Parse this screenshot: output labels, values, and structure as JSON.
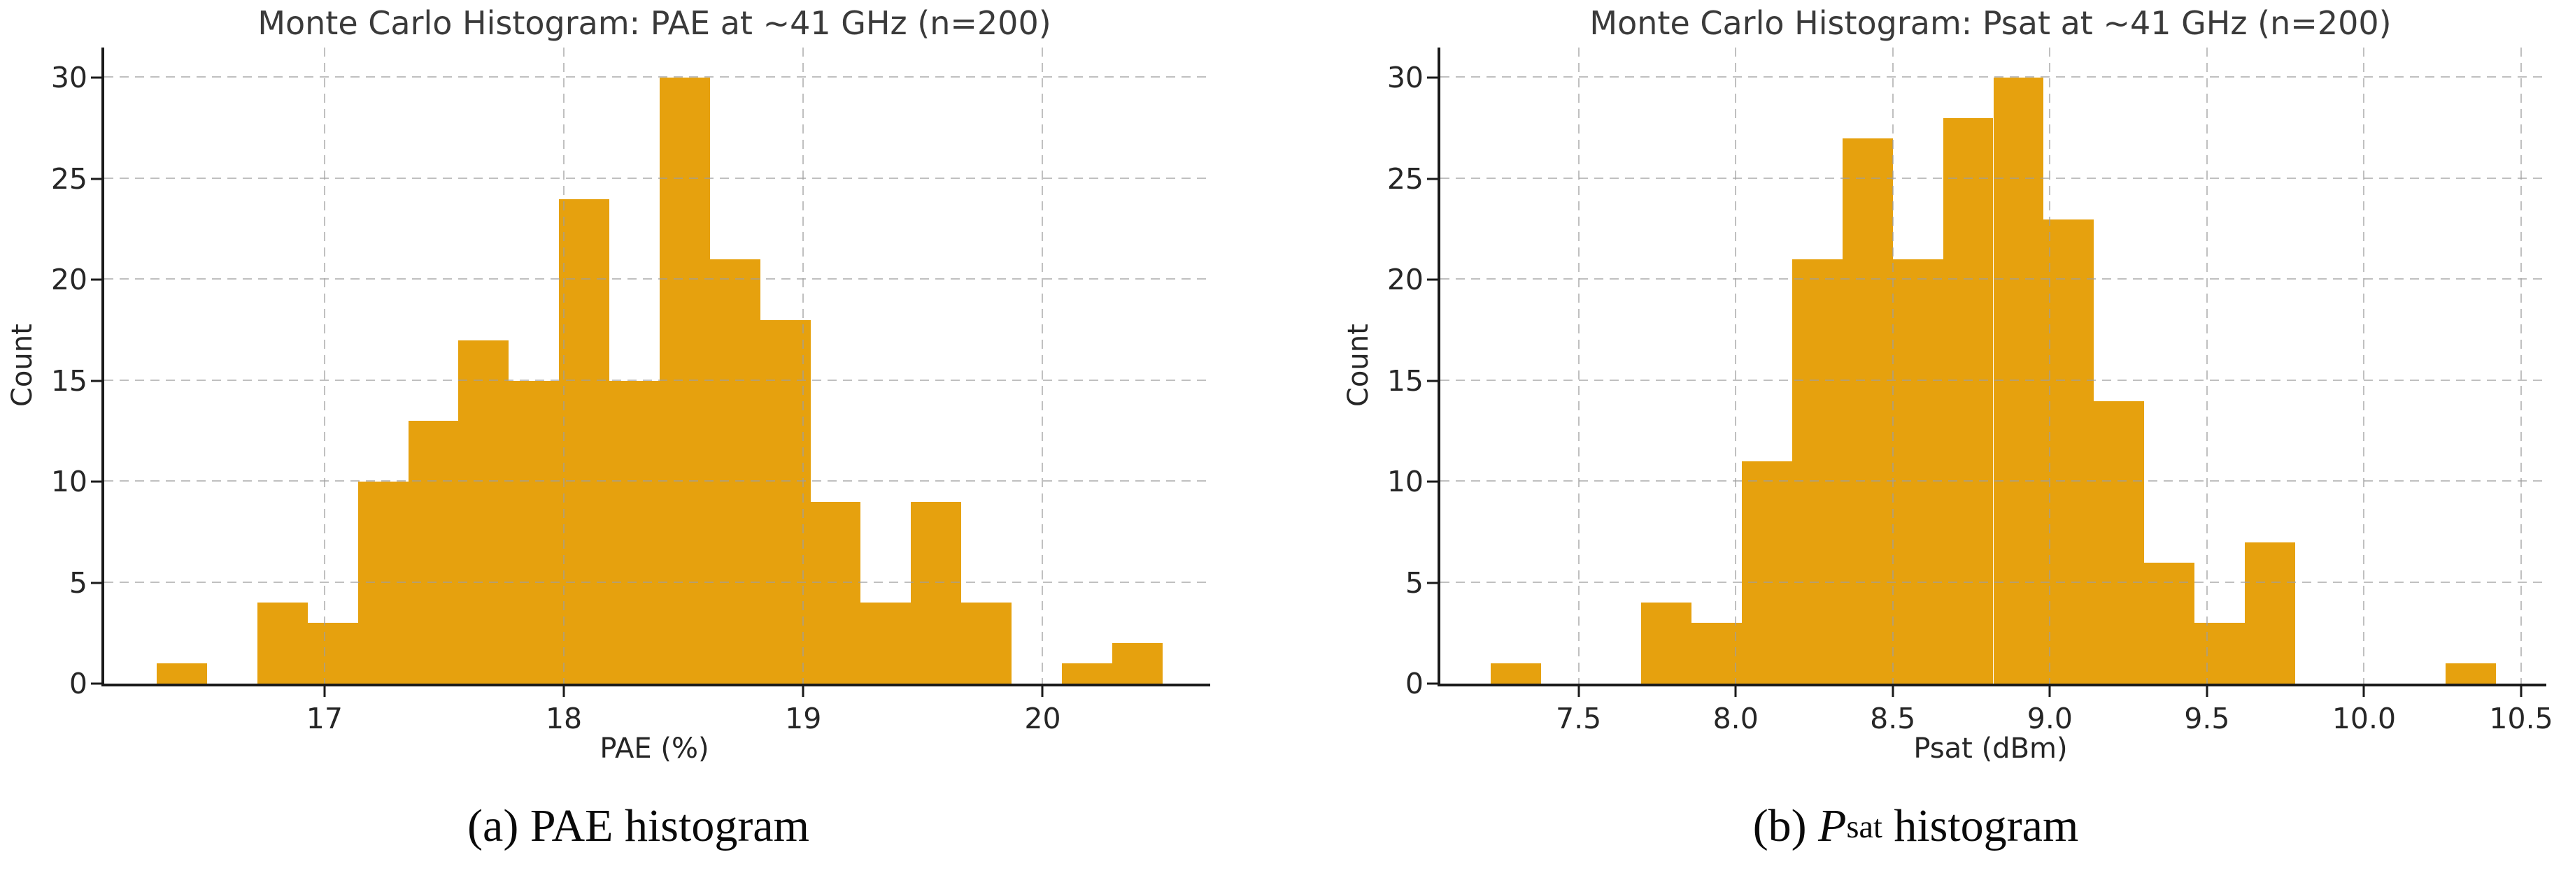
{
  "captions": {
    "a": {
      "prefix": "(a) ",
      "rest": "PAE histogram"
    },
    "b": {
      "prefix": "(b) ",
      "variable": "P",
      "subscript": "sat",
      "rest": " histogram"
    }
  },
  "chart_data": [
    {
      "type": "bar",
      "title": "Monte Carlo Histogram: PAE at ~41 GHz (n=200)",
      "xlabel": "PAE (%)",
      "ylabel": "Count",
      "bar_color": "#E6A10E",
      "grid": true,
      "legend": "none",
      "xlim": [
        16.08,
        20.7
      ],
      "ylim": [
        0,
        31.5
      ],
      "xticks": [
        17,
        18,
        19,
        20
      ],
      "xtick_labels": [
        "17",
        "18",
        "19",
        "20"
      ],
      "yticks": [
        0,
        5,
        10,
        15,
        20,
        25,
        30
      ],
      "ytick_labels": [
        "0",
        "5",
        "10",
        "15",
        "20",
        "25",
        "30"
      ],
      "bin_start": 16.3,
      "bin_width": 0.21,
      "counts": [
        1,
        0,
        4,
        3,
        10,
        13,
        17,
        15,
        24,
        15,
        30,
        21,
        18,
        9,
        4,
        9,
        4,
        0,
        1,
        2
      ],
      "n_total": 200
    },
    {
      "type": "bar",
      "title": "Monte Carlo Histogram: Psat at ~41 GHz (n=200)",
      "xlabel": "Psat (dBm)",
      "ylabel": "Count",
      "bar_color": "#E6A10E",
      "grid": true,
      "legend": "none",
      "xlim": [
        7.06,
        10.58
      ],
      "ylim": [
        0,
        31.5
      ],
      "xticks": [
        7.5,
        8.0,
        8.5,
        9.0,
        9.5,
        10.0,
        10.5
      ],
      "xtick_labels": [
        "7.5",
        "8.0",
        "8.5",
        "9.0",
        "9.5",
        "10.0",
        "10.5"
      ],
      "yticks": [
        0,
        5,
        10,
        15,
        20,
        25,
        30
      ],
      "ytick_labels": [
        "0",
        "5",
        "10",
        "15",
        "20",
        "25",
        "30"
      ],
      "bin_start": 7.22,
      "bin_width": 0.16,
      "counts": [
        1,
        0,
        0,
        4,
        3,
        11,
        21,
        27,
        21,
        28,
        30,
        23,
        14,
        6,
        3,
        7,
        0,
        0,
        0,
        1
      ],
      "n_total": 200
    }
  ]
}
